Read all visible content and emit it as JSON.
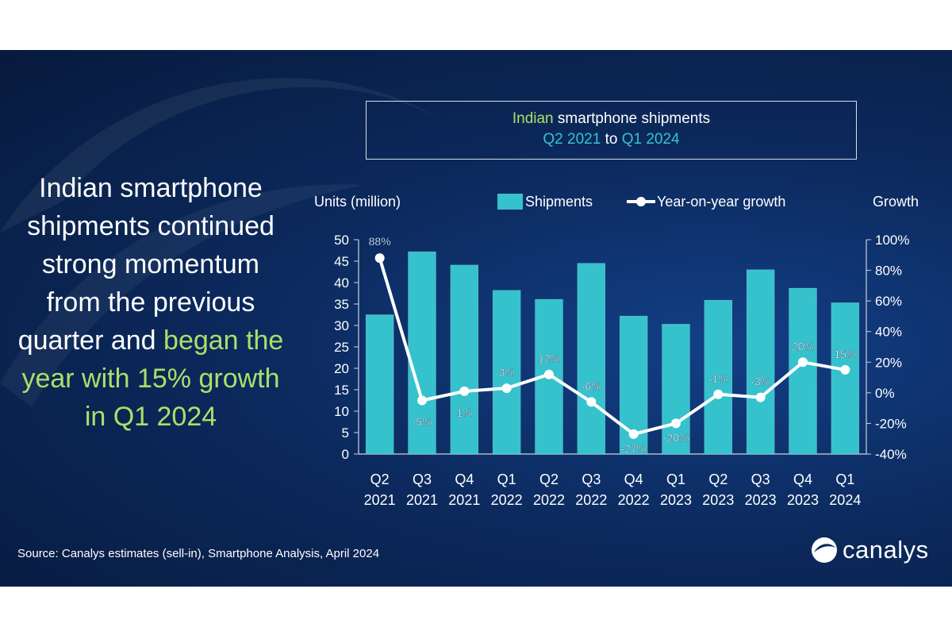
{
  "headline": {
    "part1": "Indian smartphone shipments continued strong momentum from the previous quarter and ",
    "part2": "began the year with 15% growth in Q1 2024"
  },
  "title": {
    "w1": "Indian",
    "w2": " smartphone shipments",
    "w3": "Q2 2021",
    "w4": " to ",
    "w5": "Q1 2024"
  },
  "source": "Source:  Canalys estimates (sell-in), Smartphone Analysis, April 2024",
  "logo_text": "canalys",
  "colors": {
    "bar": "#35c2cc",
    "line": "#ffffff",
    "highlight": "#a9e06a",
    "background": "#0c2a5e"
  },
  "chart_data": {
    "type": "bar",
    "y_left_label": "Units (million)",
    "y_right_label": "Growth",
    "legend": [
      "Shipments",
      "Year-on-year growth"
    ],
    "legend_position": "top",
    "categories": [
      [
        "Q2",
        "2021"
      ],
      [
        "Q3",
        "2021"
      ],
      [
        "Q4",
        "2021"
      ],
      [
        "Q1",
        "2022"
      ],
      [
        "Q2",
        "2022"
      ],
      [
        "Q3",
        "2022"
      ],
      [
        "Q4",
        "2022"
      ],
      [
        "Q1",
        "2023"
      ],
      [
        "Q2",
        "2023"
      ],
      [
        "Q3",
        "2023"
      ],
      [
        "Q4",
        "2023"
      ],
      [
        "Q1",
        "2024"
      ]
    ],
    "series": [
      {
        "name": "Shipments",
        "type": "bar",
        "axis": "left",
        "values": [
          32.5,
          47.2,
          44.1,
          38.2,
          36.1,
          44.5,
          32.2,
          30.3,
          35.9,
          43.0,
          38.7,
          35.3
        ]
      },
      {
        "name": "Year-on-year growth",
        "type": "line",
        "axis": "right",
        "values": [
          88,
          -5,
          1,
          3,
          12,
          -6,
          -27,
          -20,
          -1,
          -3,
          20,
          15
        ],
        "labels": [
          "88%",
          "-5%",
          "1%",
          "3%",
          "12%",
          "-6%",
          "-27%",
          "-20%",
          "-1%",
          "-3%",
          "20%",
          "15%"
        ]
      }
    ],
    "y_left": {
      "min": 0,
      "max": 50,
      "ticks": [
        "0",
        "5",
        "10",
        "15",
        "20",
        "25",
        "30",
        "35",
        "40",
        "45",
        "50"
      ]
    },
    "y_right": {
      "min": -40,
      "max": 100,
      "ticks": [
        "-40%",
        "-20%",
        "0%",
        "20%",
        "40%",
        "60%",
        "80%",
        "100%"
      ]
    },
    "grid": false
  }
}
